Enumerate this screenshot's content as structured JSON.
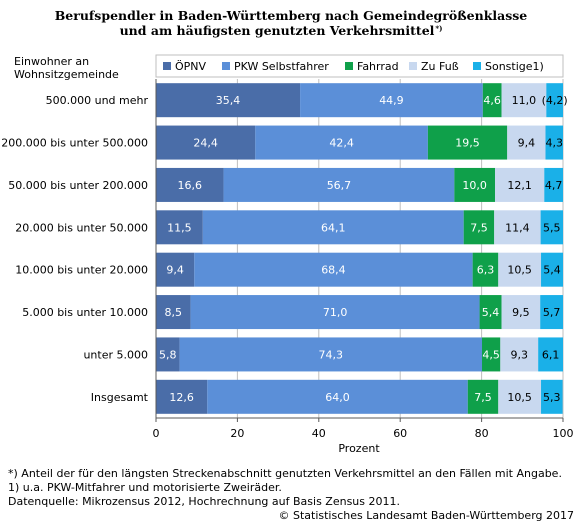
{
  "chart_data": {
    "type": "bar",
    "orientation": "horizontal",
    "stacked": true,
    "title_line1": "Berufspendler in Baden-Württemberg nach Gemeindegrößenklasse",
    "title_line2": "und  am häufigsten genutzten Verkehrsmittel",
    "title_sup": "*)",
    "ylabel_line1": "Einwohner an",
    "ylabel_line2": "Wohnsitzgemeinde",
    "xlabel": "Prozent",
    "xlim": [
      0,
      100
    ],
    "xticks": [
      0,
      20,
      40,
      60,
      80,
      100
    ],
    "grid": true,
    "legend_position": "top",
    "categories": [
      "500.000 und mehr",
      "200.000 bis unter 500.000",
      "50.000 bis unter 200.000",
      "20.000 bis unter 50.000",
      "10.000 bis unter 20.000",
      "5.000 bis unter 10.000",
      "unter 5.000",
      "Insgesamt"
    ],
    "series": [
      {
        "name": "ÖPNV",
        "color": "#4a6da8",
        "text_color": "#ffffff",
        "labels": [
          "35,4",
          "24,4",
          "16,6",
          "11,5",
          "9,4",
          "8,5",
          "5,8",
          "12,6"
        ],
        "values": [
          35.4,
          24.4,
          16.6,
          11.5,
          9.4,
          8.5,
          5.8,
          12.6
        ]
      },
      {
        "name": "PKW Selbstfahrer",
        "color": "#5b8fd8",
        "text_color": "#ffffff",
        "labels": [
          "44,9",
          "42,4",
          "56,7",
          "64,1",
          "68,4",
          "71,0",
          "74,3",
          "64,0"
        ],
        "values": [
          44.9,
          42.4,
          56.7,
          64.1,
          68.4,
          71.0,
          74.3,
          64.0
        ]
      },
      {
        "name": "Fahrrad",
        "color": "#0fa04a",
        "text_color": "#ffffff",
        "labels": [
          "4,6",
          "19,5",
          "10,0",
          "7,5",
          "6,3",
          "5,4",
          "4,5",
          "7,5"
        ],
        "values": [
          4.6,
          19.5,
          10.0,
          7.5,
          6.3,
          5.4,
          4.5,
          7.5
        ]
      },
      {
        "name": "Zu Fuß",
        "color": "#c8d8ef",
        "text_color": "#000000",
        "labels": [
          "11,0",
          "9,4",
          "12,1",
          "11,4",
          "10,5",
          "9,5",
          "9,3",
          "10,5"
        ],
        "values": [
          11.0,
          9.4,
          12.1,
          11.4,
          10.5,
          9.5,
          9.3,
          10.5
        ]
      },
      {
        "name": "Sonstige1)",
        "color": "#1ab0e8",
        "text_color": "#000000",
        "labels": [
          "(4,2)",
          "4,3",
          "4,7",
          "5,5",
          "5,4",
          "5,7",
          "6,1",
          "5,3"
        ],
        "values": [
          4.2,
          4.3,
          4.7,
          5.5,
          5.4,
          5.7,
          6.1,
          5.3
        ]
      }
    ]
  },
  "footnotes": [
    "*) Anteil der für den längsten Streckenabschnitt genutzten Verkehrsmittel an den Fällen mit Angabe.",
    "1) u.a. PKW-Mitfahrer und motorisierte Zweiräder.",
    "Datenquelle: Mikrozensus 2012, Hochrechnung auf Basis Zensus 2011."
  ],
  "copyright": "© Statistisches Landesamt Baden-Württemberg 2017"
}
